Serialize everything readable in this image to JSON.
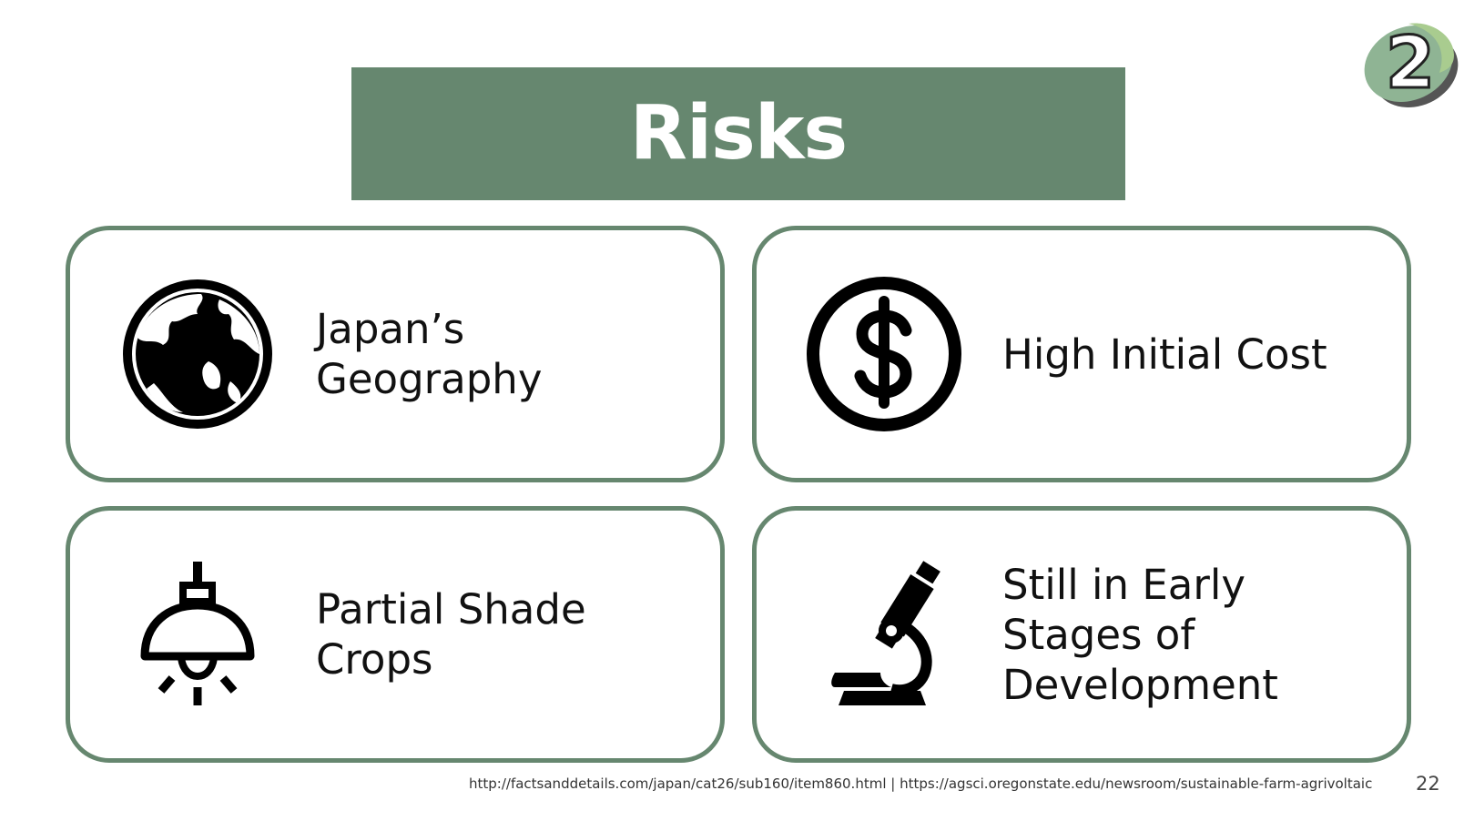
{
  "slide": {
    "title": "Risks",
    "logo_number": "2",
    "page_number": "22"
  },
  "cards": [
    {
      "icon": "globe-icon",
      "label": "Japan’s\nGeography"
    },
    {
      "icon": "dollar-coin-icon",
      "label": "High Initial Cost"
    },
    {
      "icon": "hanging-lamp-icon",
      "label": "Partial Shade\nCrops"
    },
    {
      "icon": "microscope-icon",
      "label": "Still in Early\nStages of\nDevelopment"
    }
  ],
  "footer": {
    "links": "http://factsanddetails.com/japan/cat26/sub160/item860.html   |  https://agsci.oregonstate.edu/newsroom/sustainable-farm-agrivoltaic"
  },
  "colors": {
    "accent_green": "#66876f",
    "logo_light_green": "#8fb494",
    "logo_shadow": "#555555"
  }
}
